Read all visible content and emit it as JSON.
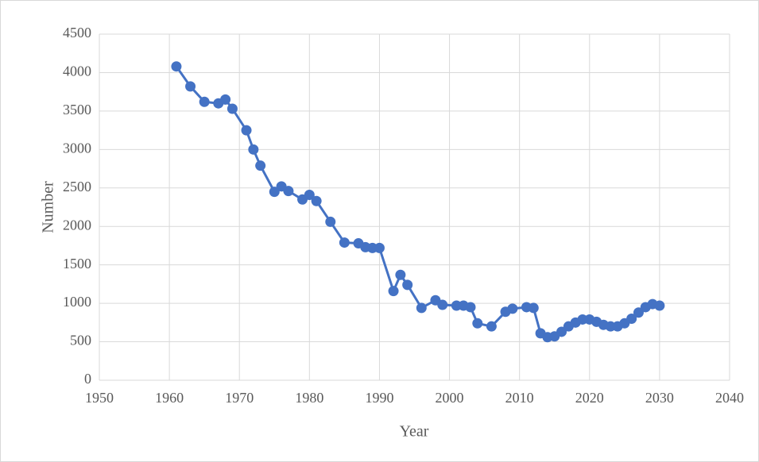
{
  "chart_data": {
    "type": "line",
    "x_label": "Year",
    "y_label": "Number",
    "color": "#4472c4",
    "grid": true,
    "x": [
      1961,
      1963,
      1965,
      1967,
      1968,
      1969,
      1971,
      1972,
      1973,
      1975,
      1976,
      1977,
      1979,
      1980,
      1981,
      1983,
      1985,
      1987,
      1988,
      1989,
      1990,
      1992,
      1993,
      1994,
      1996,
      1998,
      1999,
      2001,
      2002,
      2003,
      2004,
      2006,
      2008,
      2009,
      2011,
      2012,
      2013,
      2014,
      2015,
      2016,
      2017,
      2018,
      2019,
      2020,
      2021,
      2022,
      2023,
      2024,
      2025,
      2026,
      2027,
      2028,
      2029,
      2030
    ],
    "values": [
      4080,
      3820,
      3620,
      3600,
      3650,
      3530,
      3250,
      3000,
      2790,
      2450,
      2520,
      2460,
      2350,
      2410,
      2330,
      2060,
      1790,
      1780,
      1730,
      1720,
      1720,
      1160,
      1370,
      1240,
      940,
      1040,
      980,
      970,
      970,
      950,
      740,
      700,
      890,
      930,
      950,
      940,
      610,
      560,
      570,
      630,
      700,
      750,
      790,
      790,
      760,
      720,
      700,
      700,
      740,
      800,
      880,
      950,
      990,
      970
    ],
    "xlim": [
      1950,
      2040
    ],
    "xticks": [
      1950,
      1960,
      1970,
      1980,
      1990,
      2000,
      2010,
      2020,
      2030,
      2040
    ],
    "ylim": [
      0,
      4500
    ],
    "yticks": [
      0,
      500,
      1000,
      1500,
      2000,
      2500,
      3000,
      3500,
      4000,
      4500
    ]
  }
}
